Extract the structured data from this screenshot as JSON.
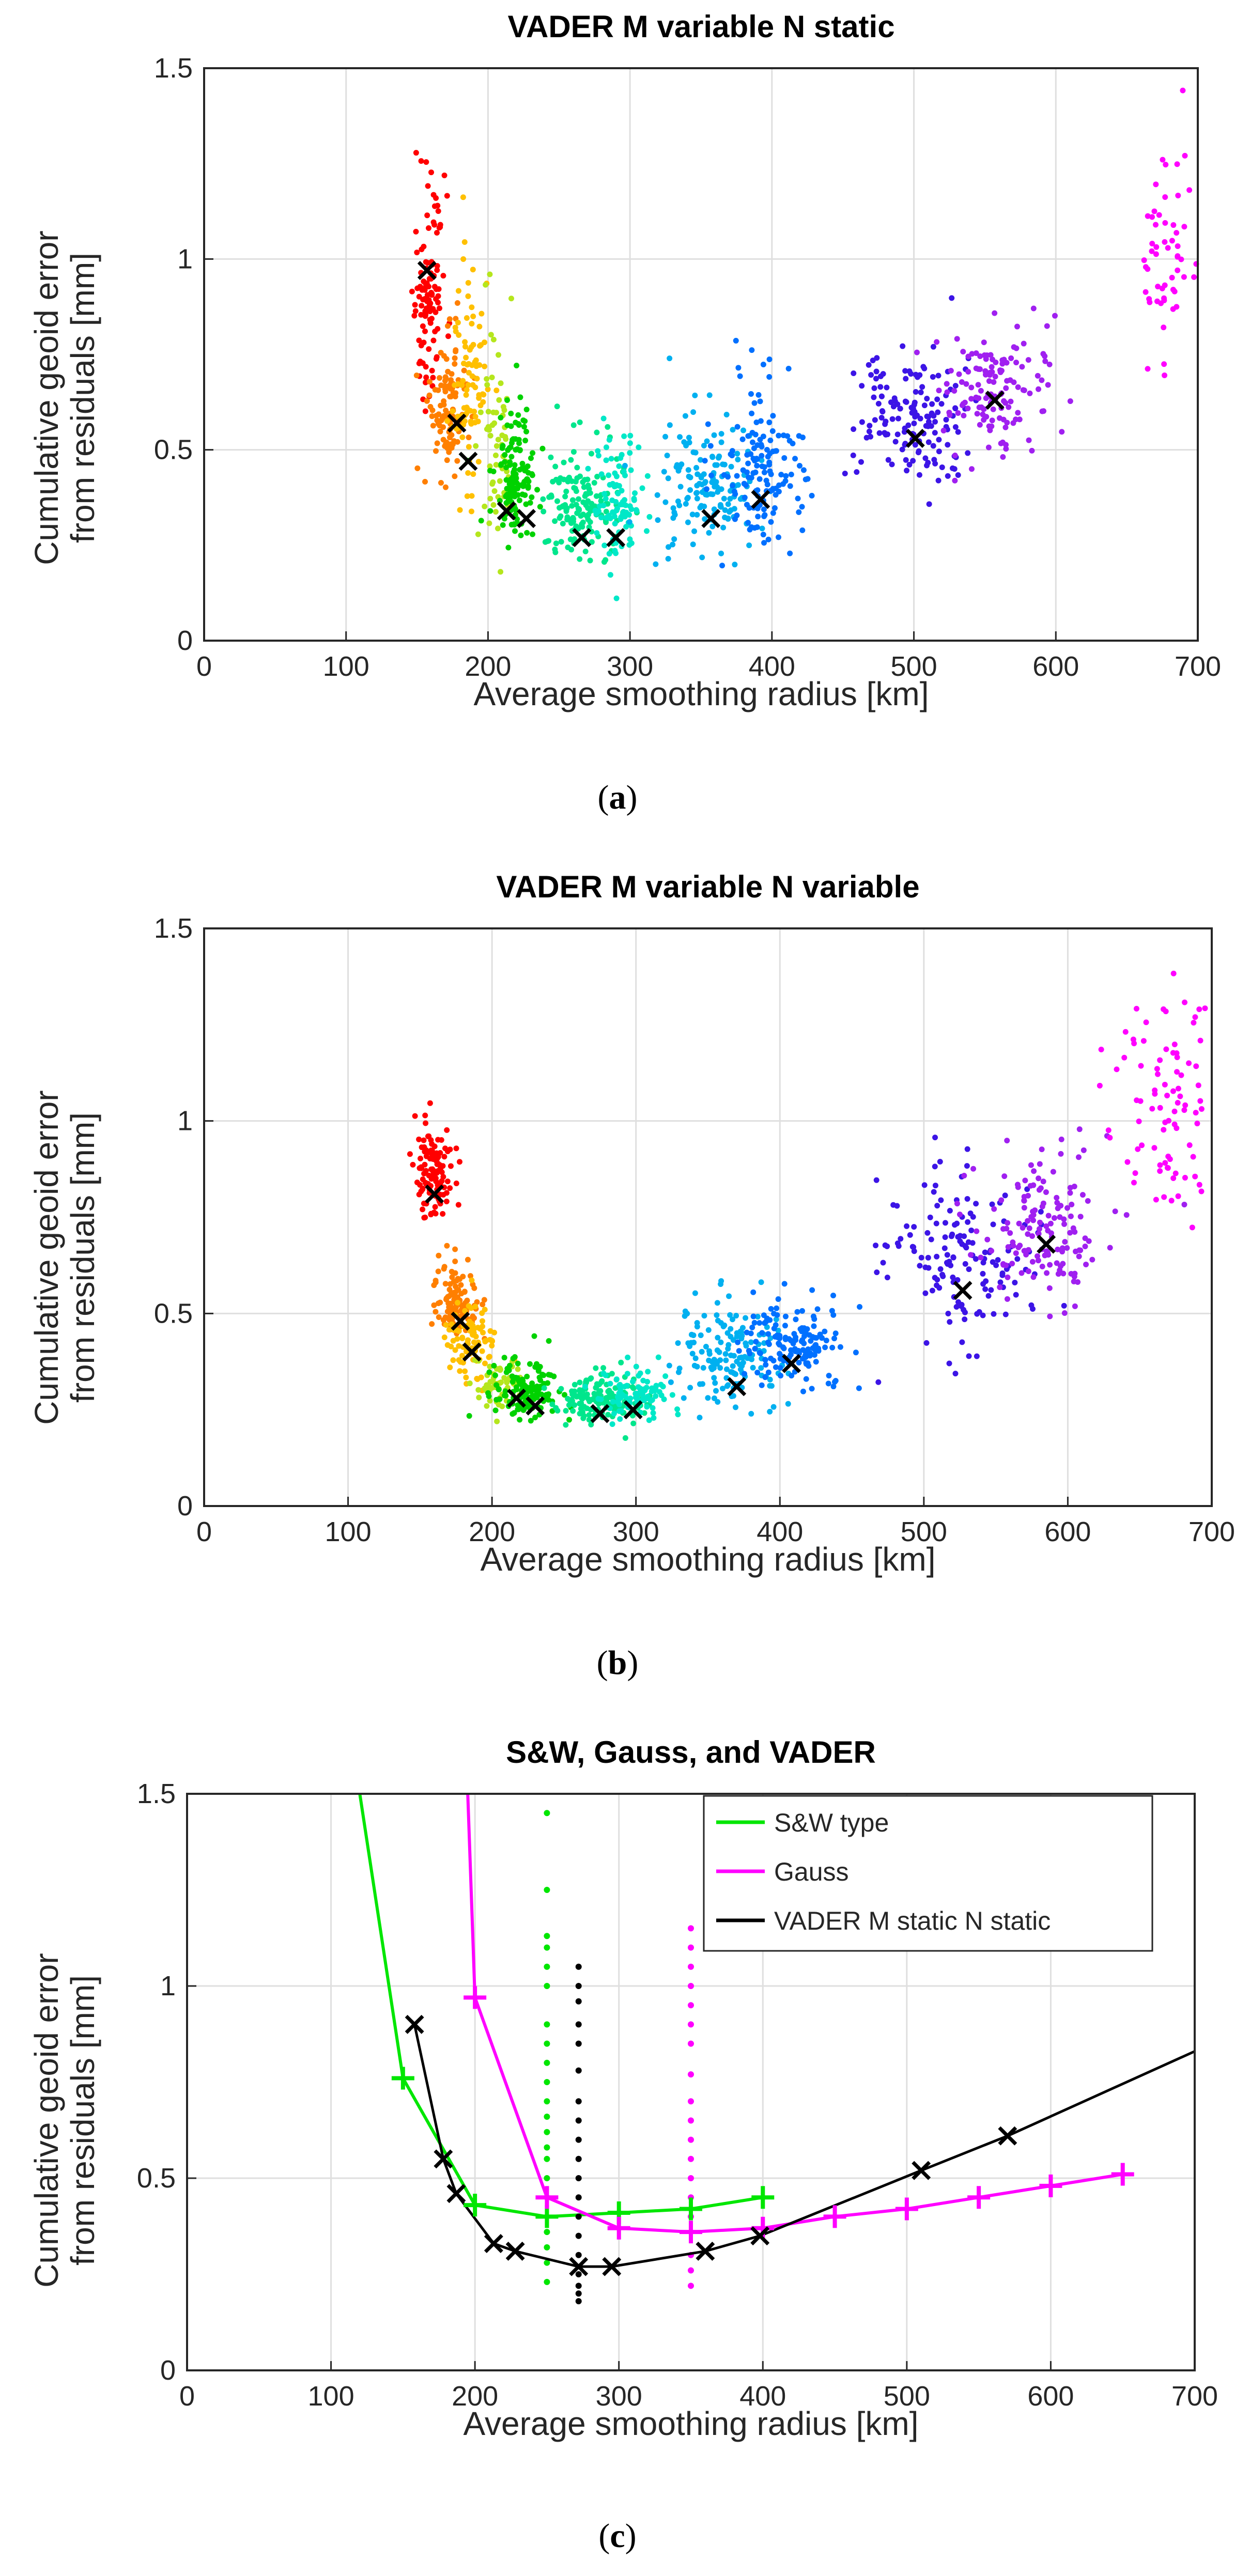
{
  "figure": {
    "caption_a": "a",
    "caption_b": "b",
    "caption_c": "c"
  },
  "chart_data": [
    {
      "type": "scatter",
      "id": "a",
      "title": "VADER M variable N static",
      "xlabel": "Average smoothing radius [km]",
      "ylabel_line1": "Cumulative geoid error",
      "ylabel_line2": "from residuals [mm]",
      "xlim": [
        0,
        700
      ],
      "ylim": [
        0,
        1.5
      ],
      "xticks": [
        0,
        100,
        200,
        300,
        400,
        500,
        600,
        700
      ],
      "yticks": [
        0,
        0.5,
        1,
        1.5
      ],
      "grid": true,
      "clusters": [
        {
          "color": "#ff0000",
          "center": [
            158,
            0.82
          ],
          "xspread": 7,
          "yspread": 0.2,
          "n": 110
        },
        {
          "color": "#ff7f00",
          "center": [
            172,
            0.56
          ],
          "xspread": 8,
          "yspread": 0.13,
          "n": 110
        },
        {
          "color": "#ffc000",
          "center": [
            185,
            0.57
          ],
          "xspread": 8,
          "yspread": 0.25,
          "n": 90
        },
        {
          "color": "#b5e61d",
          "center": [
            205,
            0.42
          ],
          "xspread": 8,
          "yspread": 0.2,
          "n": 60
        },
        {
          "color": "#00d200",
          "center": [
            218,
            0.38
          ],
          "xspread": 10,
          "yspread": 0.12,
          "n": 130
        },
        {
          "color": "#00e68c",
          "center": [
            265,
            0.31
          ],
          "xspread": 18,
          "yspread": 0.1,
          "n": 150
        },
        {
          "color": "#00e8c8",
          "center": [
            292,
            0.32
          ],
          "xspread": 12,
          "yspread": 0.12,
          "n": 90
        },
        {
          "color": "#00b0f0",
          "center": [
            355,
            0.36
          ],
          "xspread": 22,
          "yspread": 0.12,
          "n": 150
        },
        {
          "color": "#0070ff",
          "center": [
            395,
            0.39
          ],
          "xspread": 20,
          "yspread": 0.15,
          "n": 140
        },
        {
          "color": "#3c14e6",
          "center": [
            500,
            0.53
          ],
          "xspread": 25,
          "yspread": 0.12,
          "n": 150
        },
        {
          "color": "#a020f0",
          "center": [
            555,
            0.62
          ],
          "xspread": 22,
          "yspread": 0.13,
          "n": 140
        },
        {
          "color": "#ff00ff",
          "center": [
            680,
            0.93
          ],
          "xspread": 12,
          "yspread": 0.2,
          "n": 55
        }
      ],
      "markers": [
        [
          157,
          0.97
        ],
        [
          178,
          0.57
        ],
        [
          186,
          0.47
        ],
        [
          213,
          0.34
        ],
        [
          227,
          0.32
        ],
        [
          266,
          0.27
        ],
        [
          290,
          0.27
        ],
        [
          357,
          0.32
        ],
        [
          392,
          0.37
        ],
        [
          501,
          0.53
        ],
        [
          557,
          0.63
        ]
      ]
    },
    {
      "type": "scatter",
      "id": "b",
      "title": "VADER M variable N variable",
      "xlabel": "Average smoothing radius [km]",
      "ylabel_line1": "Cumulative geoid error",
      "ylabel_line2": "from residuals [mm]",
      "xlim": [
        0,
        700
      ],
      "ylim": [
        0,
        1.5
      ],
      "xticks": [
        0,
        100,
        200,
        300,
        400,
        500,
        600,
        700
      ],
      "yticks": [
        0,
        0.5,
        1,
        1.5
      ],
      "grid": true,
      "clusters": [
        {
          "color": "#ff0000",
          "center": [
            160,
            0.82
          ],
          "xspread": 8,
          "yspread": 0.1,
          "n": 120
        },
        {
          "color": "#ff7f00",
          "center": [
            175,
            0.5
          ],
          "xspread": 10,
          "yspread": 0.07,
          "n": 110
        },
        {
          "color": "#ffc000",
          "center": [
            185,
            0.41
          ],
          "xspread": 10,
          "yspread": 0.07,
          "n": 90
        },
        {
          "color": "#b5e61d",
          "center": [
            205,
            0.3
          ],
          "xspread": 10,
          "yspread": 0.05,
          "n": 60
        },
        {
          "color": "#00d200",
          "center": [
            225,
            0.28
          ],
          "xspread": 15,
          "yspread": 0.05,
          "n": 140
        },
        {
          "color": "#00e68c",
          "center": [
            275,
            0.26
          ],
          "xspread": 20,
          "yspread": 0.05,
          "n": 140
        },
        {
          "color": "#00e8c8",
          "center": [
            300,
            0.27
          ],
          "xspread": 15,
          "yspread": 0.05,
          "n": 90
        },
        {
          "color": "#00b0f0",
          "center": [
            365,
            0.34
          ],
          "xspread": 22,
          "yspread": 0.1,
          "n": 150
        },
        {
          "color": "#0070ff",
          "center": [
            410,
            0.38
          ],
          "xspread": 25,
          "yspread": 0.08,
          "n": 150
        },
        {
          "color": "#3c14e6",
          "center": [
            525,
            0.58
          ],
          "xspread": 30,
          "yspread": 0.15,
          "n": 150
        },
        {
          "color": "#a020f0",
          "center": [
            585,
            0.66
          ],
          "xspread": 28,
          "yspread": 0.15,
          "n": 150
        },
        {
          "color": "#ff00ff",
          "center": [
            665,
            0.95
          ],
          "xspread": 25,
          "yspread": 0.2,
          "n": 90
        }
      ],
      "markers": [
        [
          160,
          0.81
        ],
        [
          178,
          0.48
        ],
        [
          186,
          0.4
        ],
        [
          217,
          0.28
        ],
        [
          230,
          0.26
        ],
        [
          275,
          0.24
        ],
        [
          298,
          0.25
        ],
        [
          370,
          0.31
        ],
        [
          408,
          0.37
        ],
        [
          527,
          0.56
        ],
        [
          585,
          0.68
        ]
      ]
    },
    {
      "type": "line",
      "id": "c",
      "title": "S&W, Gauss, and VADER",
      "xlabel": "Average smoothing radius [km]",
      "ylabel_line1": "Cumulative geoid error",
      "ylabel_line2": "from residuals [mm]",
      "xlim": [
        0,
        700
      ],
      "ylim": [
        0,
        1.5
      ],
      "xticks": [
        0,
        100,
        200,
        300,
        400,
        500,
        600,
        700
      ],
      "yticks": [
        0,
        0.5,
        1,
        1.5
      ],
      "grid": true,
      "legend_position": "top-right",
      "series": [
        {
          "name": "S&W type",
          "color": "#00e600",
          "marker": "plus",
          "x": [
            120,
            150,
            200,
            250,
            300,
            350,
            400
          ],
          "y": [
            1.5,
            0.76,
            0.43,
            0.4,
            0.41,
            0.42,
            0.45
          ],
          "marked": [
            false,
            true,
            true,
            true,
            true,
            true,
            true
          ],
          "spread": {
            "x": 250,
            "y": [
              0.23,
              0.28,
              0.32,
              0.36,
              0.45,
              0.5,
              0.55,
              0.58,
              0.62,
              0.66,
              0.7,
              0.75,
              0.8,
              0.85,
              0.9,
              1.0,
              1.05,
              1.1,
              1.13,
              1.25,
              1.45
            ]
          }
        },
        {
          "name": "Gauss",
          "color": "#ff00ff",
          "marker": "plus",
          "x": [
            200,
            250,
            300,
            350,
            400,
            450,
            500,
            550,
            600,
            650
          ],
          "y": [
            0.97,
            0.45,
            0.37,
            0.36,
            0.37,
            0.4,
            0.42,
            0.45,
            0.48,
            0.51
          ],
          "marked": [
            true,
            true,
            true,
            true,
            true,
            true,
            true,
            true,
            true,
            true
          ],
          "lead_in": {
            "x": [
              195,
              200
            ],
            "y": [
              1.5,
              0.97
            ]
          },
          "spread": {
            "x": 350,
            "y": [
              0.22,
              0.26,
              0.3,
              0.4,
              0.45,
              0.5,
              0.55,
              0.6,
              0.65,
              0.7,
              0.77,
              0.85,
              0.9,
              0.95,
              1.0,
              1.05,
              1.1,
              1.15
            ]
          }
        },
        {
          "name": "VADER M static N static",
          "color": "#000000",
          "marker": "x",
          "x": [
            158,
            178,
            187,
            213,
            228,
            272,
            295,
            360,
            398,
            510,
            570,
            700
          ],
          "y": [
            0.9,
            0.55,
            0.46,
            0.33,
            0.31,
            0.27,
            0.27,
            0.31,
            0.35,
            0.52,
            0.61,
            0.83
          ],
          "marked": [
            true,
            true,
            true,
            true,
            true,
            true,
            true,
            true,
            true,
            true,
            true,
            false
          ],
          "spread": {
            "x": 272,
            "y": [
              0.18,
              0.2,
              0.22,
              0.25,
              0.3,
              0.35,
              0.4,
              0.45,
              0.5,
              0.55,
              0.6,
              0.65,
              0.7,
              0.78,
              0.85,
              0.9,
              0.96,
              1.0,
              1.05
            ]
          }
        }
      ]
    }
  ]
}
